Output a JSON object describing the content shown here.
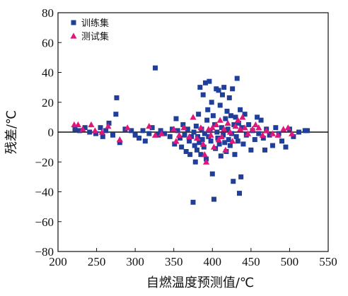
{
  "chart_data": {
    "type": "scatter",
    "title": "",
    "xlabel": "自燃温度预测值/℃",
    "ylabel": "残差/℃",
    "xlim": [
      200,
      550
    ],
    "ylim": [
      -80,
      80
    ],
    "xticks": [
      "200",
      "250",
      "300",
      "350",
      "400",
      "450",
      "500",
      "550"
    ],
    "yticks": [
      "80",
      "60",
      "40",
      "20",
      "0",
      "-20",
      "-40",
      "-60",
      "-80"
    ],
    "zero_line": 0,
    "grid": false,
    "legend_position": "top-left",
    "series": [
      {
        "name": "训练集",
        "marker": "square",
        "color": "#1f3f9a",
        "points": [
          [
            222,
            2
          ],
          [
            228,
            1
          ],
          [
            235,
            3
          ],
          [
            241,
            0
          ],
          [
            249,
            -1
          ],
          [
            255,
            3
          ],
          [
            258,
            -3
          ],
          [
            262,
            1
          ],
          [
            266,
            6
          ],
          [
            271,
            -2
          ],
          [
            275,
            12
          ],
          [
            276,
            23
          ],
          [
            280,
            -7
          ],
          [
            287,
            2
          ],
          [
            295,
            1
          ],
          [
            300,
            -2
          ],
          [
            305,
            -4
          ],
          [
            310,
            1
          ],
          [
            313,
            -6
          ],
          [
            318,
            -1
          ],
          [
            322,
            3
          ],
          [
            326,
            43
          ],
          [
            330,
            -2
          ],
          [
            333,
            1
          ],
          [
            338,
            -1
          ],
          [
            345,
            -3
          ],
          [
            348,
            2
          ],
          [
            351,
            -8
          ],
          [
            353,
            9
          ],
          [
            355,
            1
          ],
          [
            358,
            -4
          ],
          [
            360,
            -10
          ],
          [
            362,
            5
          ],
          [
            364,
            -2
          ],
          [
            366,
            -13
          ],
          [
            368,
            2
          ],
          [
            370,
            -6
          ],
          [
            371,
            -15
          ],
          [
            373,
            -3
          ],
          [
            375,
            -47
          ],
          [
            376,
            0
          ],
          [
            377,
            -9
          ],
          [
            378,
            -20
          ],
          [
            379,
            4
          ],
          [
            380,
            -12
          ],
          [
            381,
            -3
          ],
          [
            382,
            12
          ],
          [
            383,
            -7
          ],
          [
            384,
            30
          ],
          [
            385,
            -15
          ],
          [
            386,
            2
          ],
          [
            387,
            -5
          ],
          [
            388,
            25
          ],
          [
            389,
            -10
          ],
          [
            390,
            -1
          ],
          [
            391,
            33
          ],
          [
            392,
            -18
          ],
          [
            393,
            8
          ],
          [
            394,
            15
          ],
          [
            395,
            -3
          ],
          [
            396,
            34
          ],
          [
            397,
            1
          ],
          [
            398,
            -6
          ],
          [
            399,
            20
          ],
          [
            400,
            -28
          ],
          [
            401,
            11
          ],
          [
            402,
            -45
          ],
          [
            403,
            5
          ],
          [
            404,
            -11
          ],
          [
            405,
            29
          ],
          [
            406,
            0
          ],
          [
            407,
            -4
          ],
          [
            408,
            28
          ],
          [
            409,
            -8
          ],
          [
            410,
            18
          ],
          [
            411,
            -16
          ],
          [
            412,
            3
          ],
          [
            413,
            25
          ],
          [
            414,
            -2
          ],
          [
            415,
            30
          ],
          [
            416,
            -7
          ],
          [
            417,
            9
          ],
          [
            418,
            -13
          ],
          [
            419,
            14
          ],
          [
            420,
            2
          ],
          [
            421,
            -5
          ],
          [
            422,
            23
          ],
          [
            423,
            -9
          ],
          [
            424,
            11
          ],
          [
            425,
            -1
          ],
          [
            426,
            29
          ],
          [
            427,
            -33
          ],
          [
            428,
            5
          ],
          [
            429,
            -15
          ],
          [
            430,
            10
          ],
          [
            431,
            -3
          ],
          [
            432,
            36
          ],
          [
            433,
            -6
          ],
          [
            434,
            6
          ],
          [
            435,
            -41
          ],
          [
            436,
            15
          ],
          [
            437,
            -30
          ],
          [
            438,
            3
          ],
          [
            440,
            -8
          ],
          [
            442,
            12
          ],
          [
            444,
            -2
          ],
          [
            447,
            5
          ],
          [
            450,
            -12
          ],
          [
            452,
            1
          ],
          [
            455,
            -5
          ],
          [
            458,
            10
          ],
          [
            460,
            -1
          ],
          [
            463,
            8
          ],
          [
            466,
            -4
          ],
          [
            468,
            -12
          ],
          [
            470,
            2
          ],
          [
            474,
            -2
          ],
          [
            478,
            -9
          ],
          [
            482,
            3
          ],
          [
            486,
            -1
          ],
          [
            490,
            -6
          ],
          [
            495,
            -10
          ],
          [
            500,
            2
          ],
          [
            505,
            -3
          ],
          [
            512,
            0
          ],
          [
            520,
            1
          ],
          [
            523,
            1
          ]
        ]
      },
      {
        "name": "测试集",
        "marker": "triangle",
        "color": "#e0167a",
        "points": [
          [
            221,
            5
          ],
          [
            226,
            5
          ],
          [
            232,
            2
          ],
          [
            243,
            5
          ],
          [
            248,
            1
          ],
          [
            257,
            0
          ],
          [
            265,
            4
          ],
          [
            280,
            -5
          ],
          [
            290,
            3
          ],
          [
            318,
            4
          ],
          [
            326,
            -2
          ],
          [
            334,
            -1
          ],
          [
            350,
            2
          ],
          [
            353,
            -6
          ],
          [
            357,
            -2
          ],
          [
            363,
            3
          ],
          [
            370,
            -3
          ],
          [
            375,
            10
          ],
          [
            380,
            -4
          ],
          [
            385,
            3
          ],
          [
            388,
            -8
          ],
          [
            390,
            -15
          ],
          [
            392,
            -20
          ],
          [
            395,
            2
          ],
          [
            398,
            -2
          ],
          [
            400,
            3
          ],
          [
            402,
            -10
          ],
          [
            405,
            5
          ],
          [
            408,
            -5
          ],
          [
            410,
            8
          ],
          [
            412,
            -3
          ],
          [
            415,
            2
          ],
          [
            417,
            -12
          ],
          [
            420,
            6
          ],
          [
            423,
            0
          ],
          [
            426,
            -6
          ],
          [
            430,
            4
          ],
          [
            433,
            8
          ],
          [
            436,
            2
          ],
          [
            439,
            10
          ],
          [
            442,
            3
          ],
          [
            446,
            -1
          ],
          [
            452,
            2
          ],
          [
            456,
            5
          ],
          [
            460,
            3
          ],
          [
            465,
            -2
          ],
          [
            470,
            1
          ],
          [
            478,
            -1
          ],
          [
            485,
            -2
          ],
          [
            492,
            2
          ],
          [
            498,
            3
          ],
          [
            503,
            -1
          ]
        ]
      }
    ]
  }
}
